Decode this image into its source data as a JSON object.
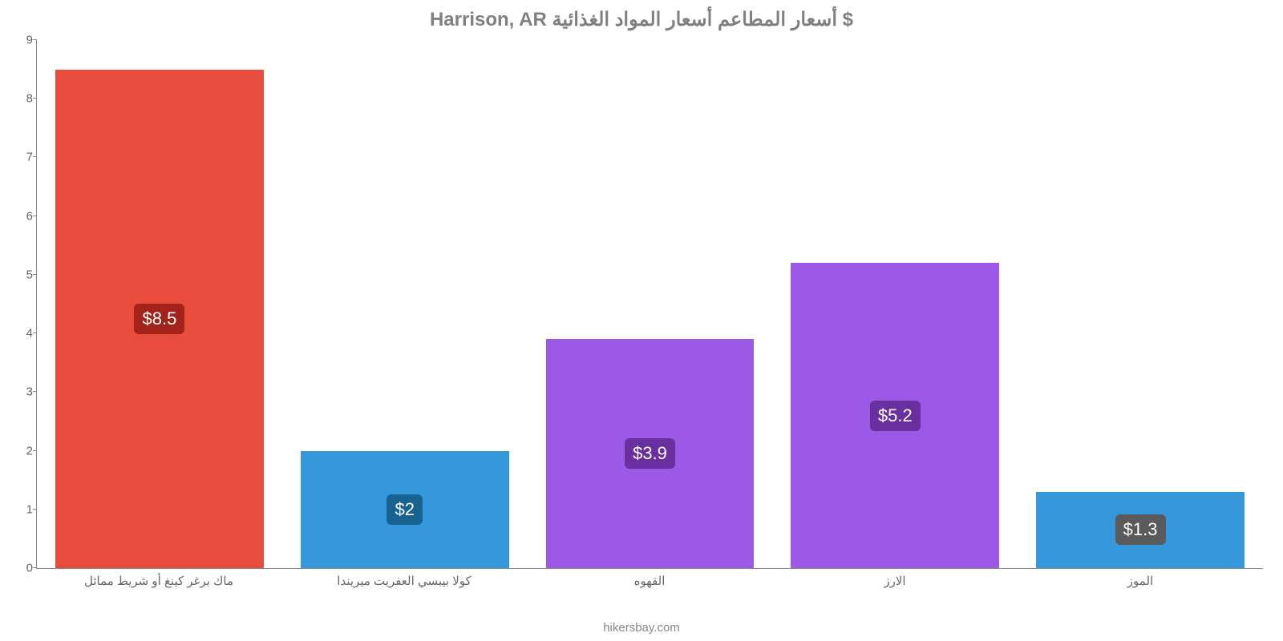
{
  "chart": {
    "type": "bar",
    "title": "Harrison, AR أسعار المطاعم أسعار المواد الغذائية $",
    "title_fontsize": 24,
    "title_color": "#808080",
    "categories": [
      "ماك برغر كينغ أو شريط مماثل",
      "كولا بيبسي العفريت ميريندا",
      "القهوه",
      "الارز",
      "الموز"
    ],
    "values": [
      8.5,
      2,
      3.9,
      5.2,
      1.3
    ],
    "value_labels": [
      "$8.5",
      "$2",
      "$3.9",
      "$5.2",
      "$1.3"
    ],
    "bar_colors": [
      "#e74c3c",
      "#3498db",
      "#9b59e6",
      "#9b59e6",
      "#3498db"
    ],
    "label_bg_colors": [
      "#a3231b",
      "#17628f",
      "#6a2f9e",
      "#6a2f9e",
      "#5a5a5a"
    ],
    "ylim": [
      0,
      9
    ],
    "yticks": [
      0,
      1,
      2,
      3,
      4,
      5,
      6,
      7,
      8,
      9
    ],
    "background_color": "#ffffff",
    "axis_color": "#888888",
    "tick_label_color": "#666666",
    "tick_fontsize": 15,
    "bar_width": 0.85,
    "value_label_fontsize": 22,
    "footer": "hikersbay.com"
  }
}
